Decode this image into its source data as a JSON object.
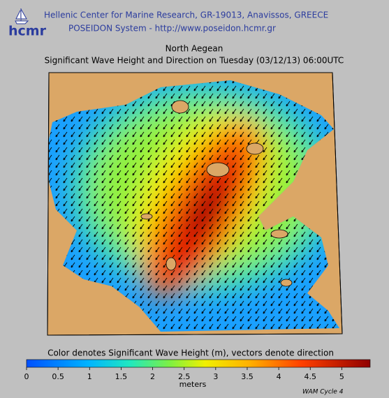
{
  "header": {
    "logo": "hcmr",
    "line1": "Hellenic Center for Marine Research, GR-19013, Anavissos, GREECE",
    "line2": "POSEIDON System - http://www.poseidon.hcmr.gr"
  },
  "title": "North Aegean",
  "subtitle": "Significant Wave Height and Direction on Tuesday (03/12/13) 06:00UTC",
  "colorbar": {
    "caption": "Color denotes Significant Wave Height (m), vectors denote direction",
    "label": "meters",
    "lim": [
      0,
      5.45
    ],
    "ticks": [
      0,
      0.5,
      1,
      1.5,
      2,
      2.5,
      3,
      3.5,
      4,
      4.5,
      5
    ]
  },
  "model": "WAM Cycle 4"
}
